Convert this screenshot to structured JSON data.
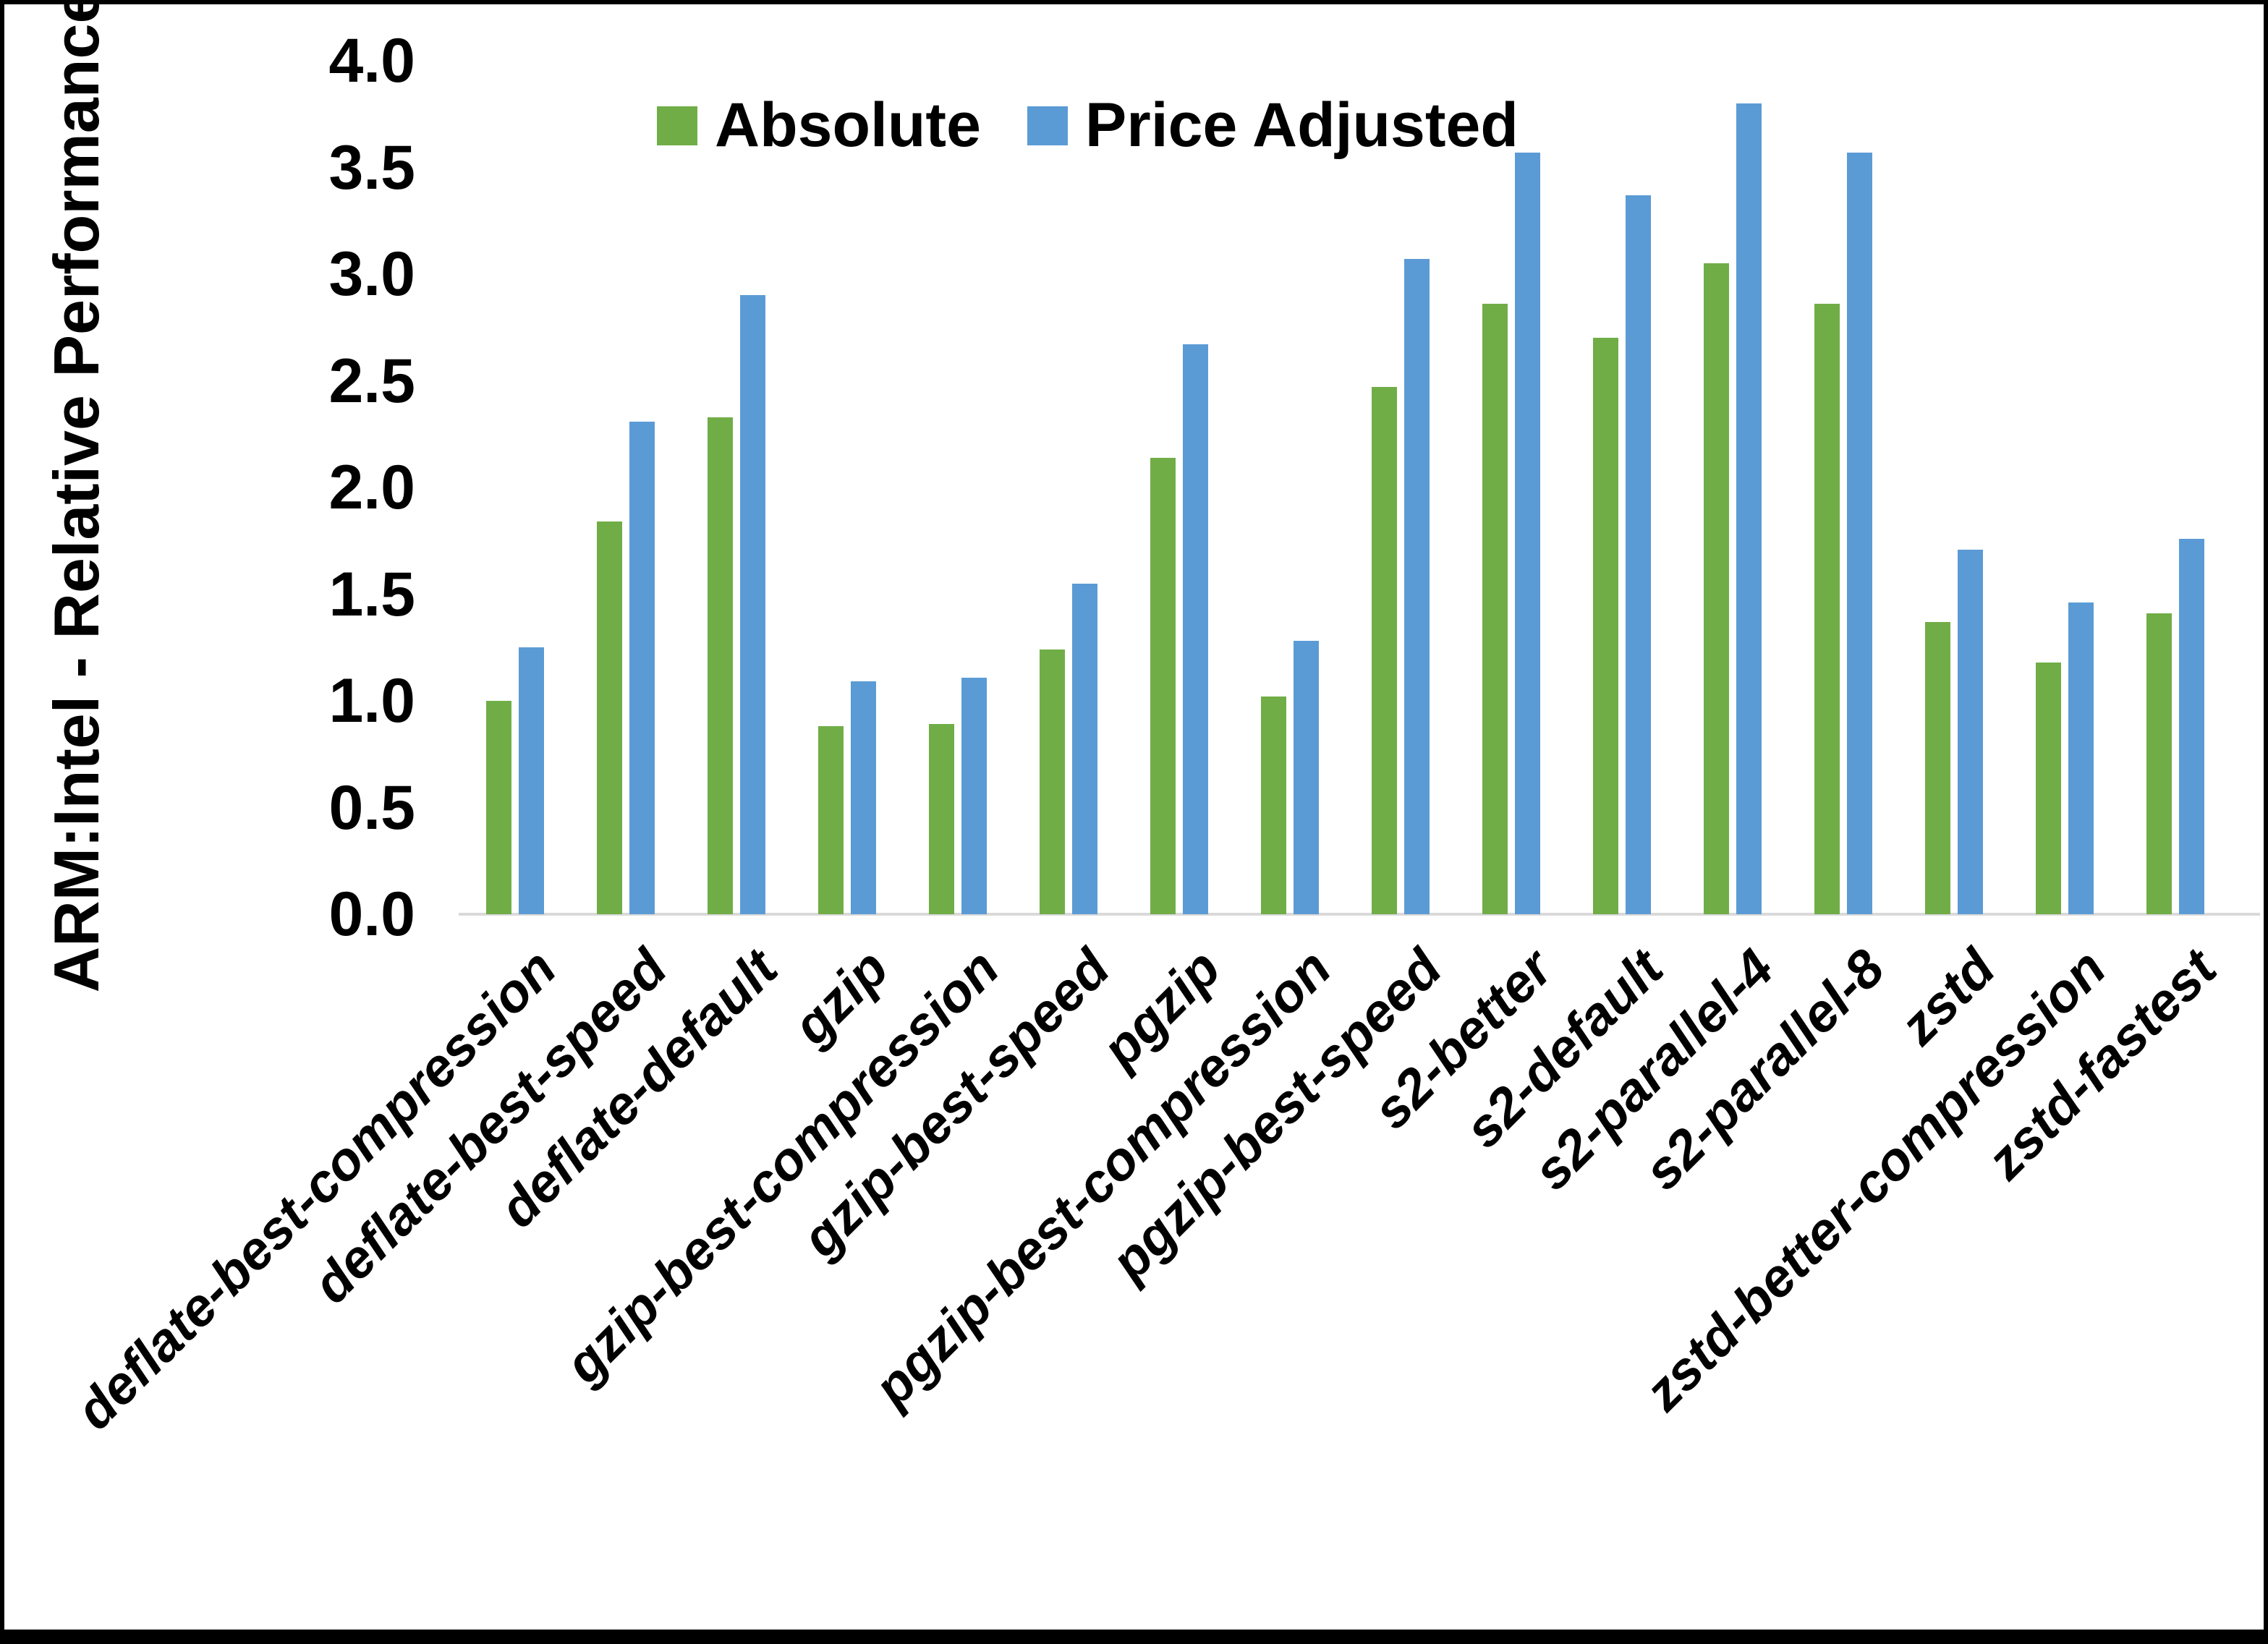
{
  "figure": {
    "background": "#ffffff",
    "frame_color": "#000000",
    "axis_line_color": "#d9d9d9"
  },
  "chart_data": {
    "type": "bar",
    "title": "",
    "xlabel": "",
    "ylabel": "ARM:Intel - Relative Performance",
    "legend_position": "top-center",
    "grid": false,
    "ylim": [
      0.0,
      4.0
    ],
    "ytick_step": 0.5,
    "ytick_labels": [
      "0.0",
      "0.5",
      "1.0",
      "1.5",
      "2.0",
      "2.5",
      "3.0",
      "3.5",
      "4.0"
    ],
    "categories": [
      "deflate-best-compression",
      "deflate-best-speed",
      "deflate-default",
      "gzip",
      "gzip-best-compression",
      "gzip-best-speed",
      "pgzip",
      "pgzip-best-compression",
      "pgzip-best-speed",
      "s2-better",
      "s2-default",
      "s2-parallel-4",
      "s2-parallel-8",
      "zstd",
      "zstd-better-compression",
      "zstd-fastest"
    ],
    "series": [
      {
        "name": "Absolute",
        "color": "#70AD47",
        "values": [
          1.0,
          1.84,
          2.33,
          0.88,
          0.89,
          1.24,
          2.14,
          1.02,
          2.47,
          2.86,
          2.7,
          3.05,
          2.86,
          1.37,
          1.18,
          1.41
        ]
      },
      {
        "name": "Price Adjusted",
        "color": "#5B9BD5",
        "values": [
          1.25,
          2.31,
          2.9,
          1.09,
          1.11,
          1.55,
          2.67,
          1.28,
          3.07,
          3.57,
          3.37,
          3.8,
          3.57,
          1.71,
          1.46,
          1.76
        ]
      }
    ]
  }
}
